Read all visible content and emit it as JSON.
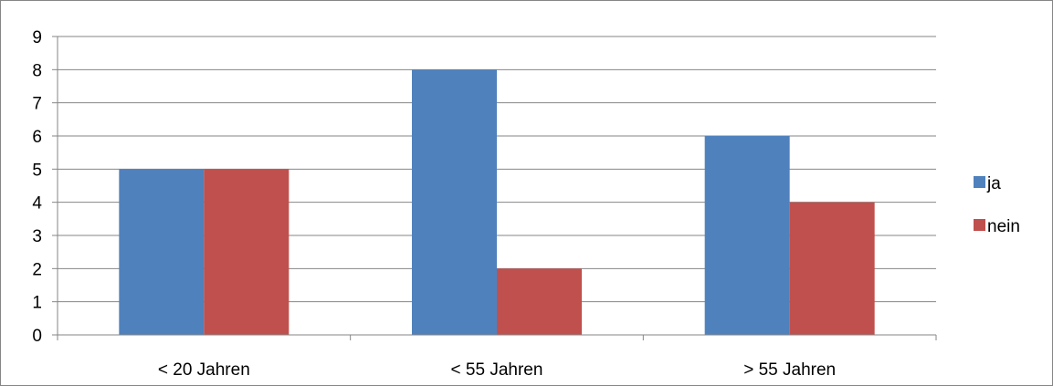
{
  "chart_data": {
    "type": "bar",
    "categories": [
      "< 20 Jahren",
      "< 55 Jahren",
      "> 55 Jahren"
    ],
    "series": [
      {
        "name": "ja",
        "values": [
          5,
          8,
          6
        ],
        "color": "#4F81BD"
      },
      {
        "name": "nein",
        "values": [
          5,
          2,
          4
        ],
        "color": "#C0504D"
      }
    ],
    "ylim": [
      0,
      9
    ],
    "yticks": [
      0,
      1,
      2,
      3,
      4,
      5,
      6,
      7,
      8,
      9
    ],
    "grid": true,
    "legend_position": "right",
    "gridline_color": "#868686",
    "axis_color": "#868686"
  }
}
